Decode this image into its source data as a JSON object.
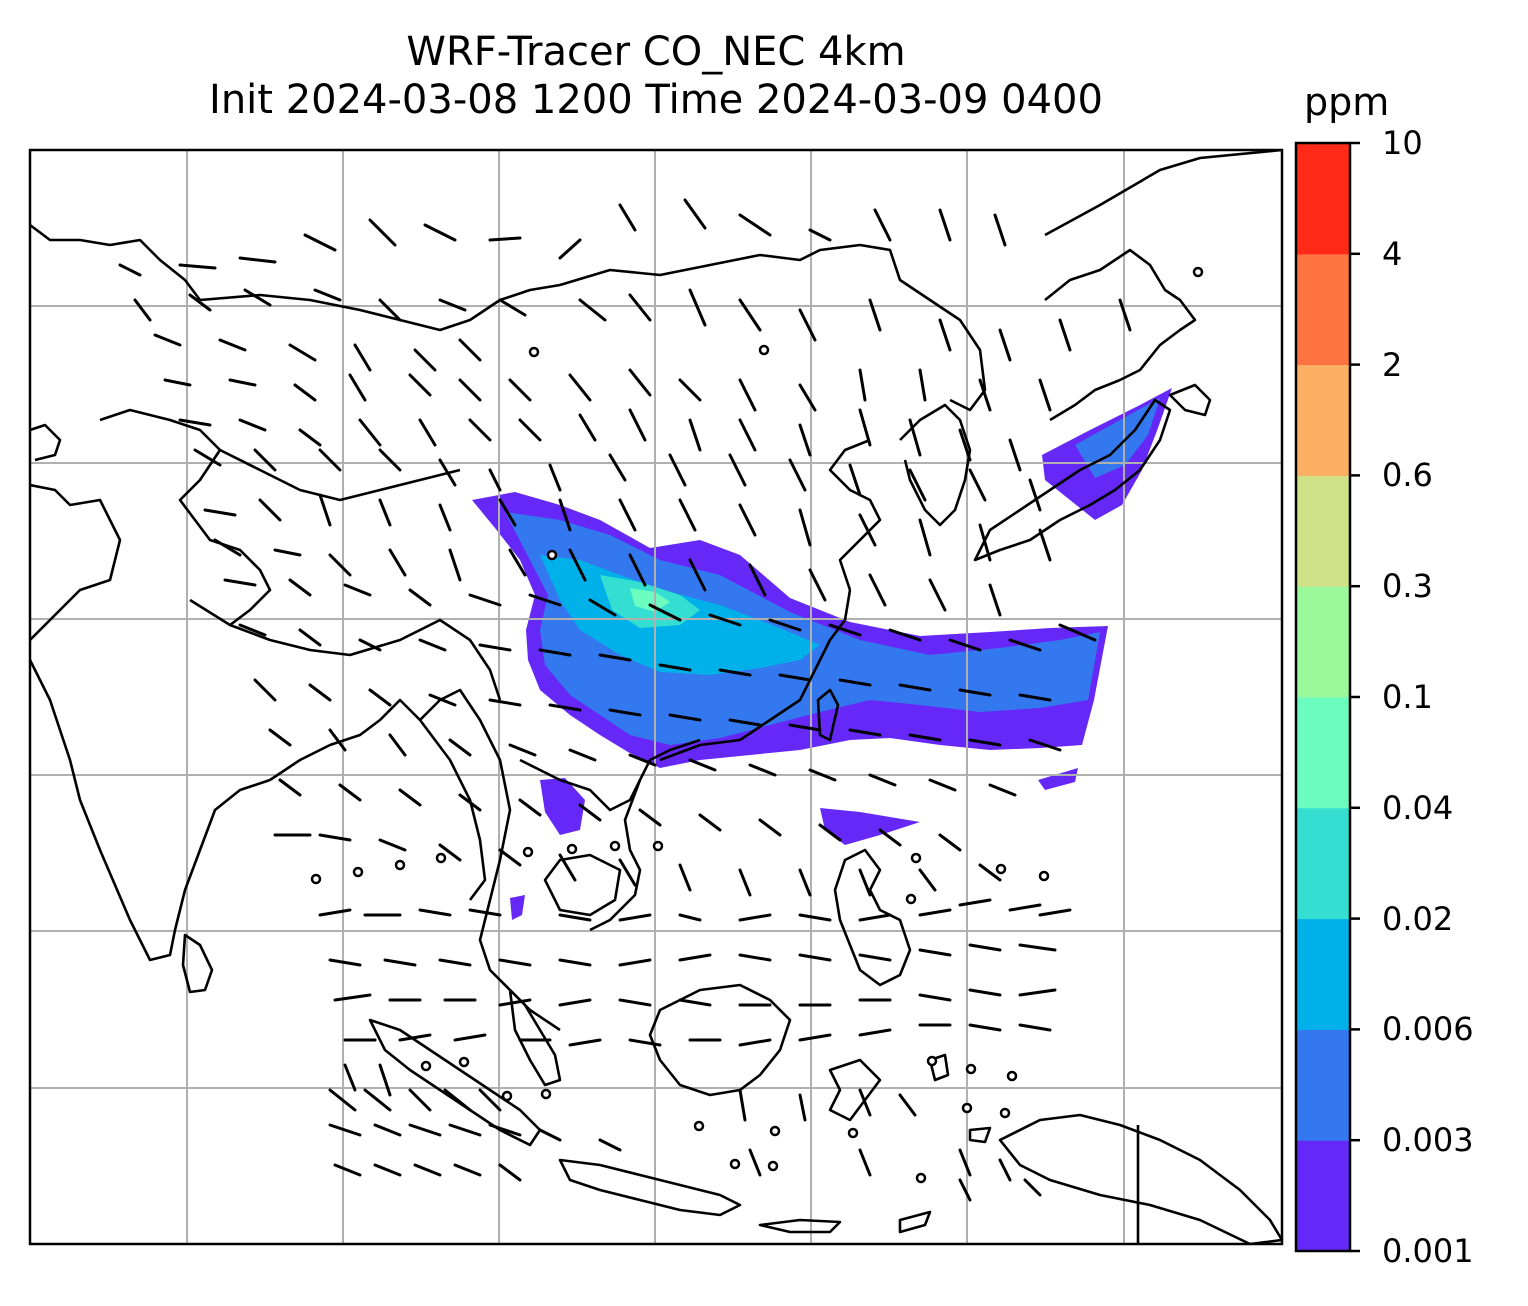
{
  "title": {
    "line1": "WRF-Tracer CO_NEC 4km",
    "line2": "Init 2024-03-08 1200 Time 2024-03-09 0400"
  },
  "colorbar": {
    "unit": "ppm",
    "levels": [
      "0.001",
      "0.003",
      "0.006",
      "0.02",
      "0.04",
      "0.1",
      "0.3",
      "0.6",
      "2",
      "4",
      "10"
    ],
    "colors": [
      "#6528f6",
      "#3478f0",
      "#00b1e9",
      "#34dfd2",
      "#6cfcc0",
      "#9bf99c",
      "#d0e187",
      "#fdaf63",
      "#ff7340",
      "#ff2a18"
    ]
  },
  "map": {
    "background": "#ffffff",
    "gridline_color": "#b0b0b0",
    "coastline_color": "#000000",
    "features": [
      "coastlines",
      "country-borders",
      "gridlines",
      "wind-barbs",
      "co-tracer-plume"
    ]
  }
}
